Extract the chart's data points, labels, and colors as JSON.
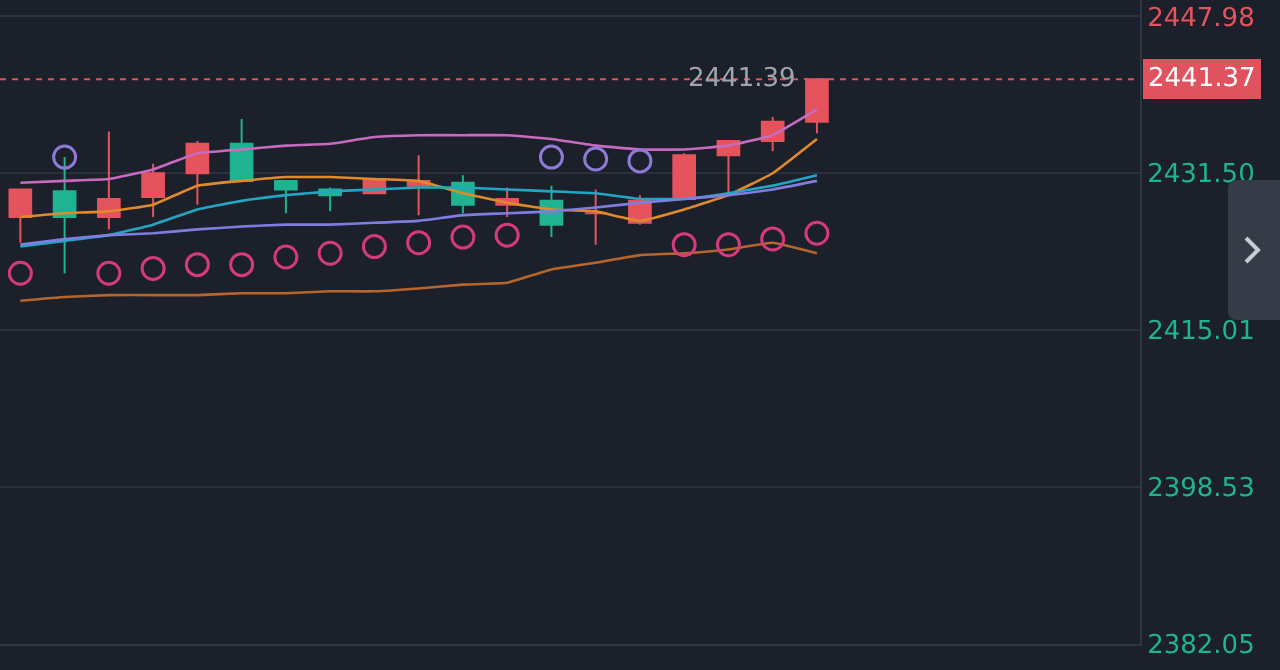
{
  "chart_data": {
    "type": "candlestick",
    "categories": [
      null,
      null,
      null,
      null,
      null,
      null,
      null,
      null,
      null,
      null,
      null,
      null,
      null,
      null,
      null,
      null,
      null,
      null,
      null
    ],
    "ohlc": [
      [
        2426.9,
        2429.8,
        2424.2,
        2429.8
      ],
      [
        2429.6,
        2433.2,
        2421.0,
        2426.9
      ],
      [
        2426.9,
        2435.9,
        2425.6,
        2428.8
      ],
      [
        2429.0,
        2432.5,
        2426.9,
        2431.5
      ],
      [
        2431.5,
        2434.9,
        2428.2,
        2434.6
      ],
      [
        2434.6,
        2437.2,
        2430.7,
        2430.7
      ],
      [
        2430.7,
        2430.7,
        2427.3,
        2429.8
      ],
      [
        2429.8,
        2430.0,
        2427.5,
        2429.2
      ],
      [
        2429.4,
        2430.9,
        2429.4,
        2430.9
      ],
      [
        2430.2,
        2433.4,
        2427.1,
        2430.7
      ],
      [
        2430.5,
        2431.3,
        2427.3,
        2428.2
      ],
      [
        2428.2,
        2430.0,
        2426.9,
        2428.8
      ],
      [
        2428.6,
        2430.2,
        2424.8,
        2426.1
      ],
      [
        2427.3,
        2429.8,
        2424.0,
        2427.3
      ],
      [
        2426.3,
        2429.2,
        2426.1,
        2428.6
      ],
      [
        2428.8,
        2433.6,
        2428.8,
        2433.4
      ],
      [
        2433.4,
        2434.9,
        2429.4,
        2434.9
      ],
      [
        2434.9,
        2437.4,
        2433.8,
        2436.9
      ],
      [
        2436.9,
        2441.39,
        2435.7,
        2441.37
      ]
    ],
    "series": [
      {
        "type": "line",
        "color": "#c86bc0",
        "values": [
          2430.5,
          2430.7,
          2430.9,
          2431.9,
          2433.6,
          2434.0,
          2434.4,
          2434.6,
          2435.3,
          2435.5,
          2435.5,
          2435.5,
          2435.1,
          2434.4,
          2434.0,
          2434.0,
          2434.4,
          2435.5,
          2438.2
        ]
      },
      {
        "type": "line",
        "color": "#e08a2c",
        "values": [
          2426.9,
          2427.3,
          2427.5,
          2428.2,
          2430.2,
          2430.7,
          2431.1,
          2431.1,
          2430.9,
          2430.7,
          2429.4,
          2428.4,
          2427.7,
          2427.5,
          2426.5,
          2427.7,
          2429.2,
          2431.5,
          2435.1
        ]
      },
      {
        "type": "line",
        "color": "#22a6c4",
        "values": [
          2423.8,
          2424.4,
          2425.0,
          2426.1,
          2427.7,
          2428.6,
          2429.2,
          2429.6,
          2429.8,
          2430.0,
          2430.0,
          2429.8,
          2429.6,
          2429.4,
          2428.8,
          2428.8,
          2429.4,
          2430.2,
          2431.3
        ]
      },
      {
        "type": "line",
        "color": "#7f7ee0",
        "values": [
          2424.0,
          2424.6,
          2425.0,
          2425.2,
          2425.6,
          2425.9,
          2426.1,
          2426.1,
          2426.3,
          2426.5,
          2427.1,
          2427.3,
          2427.5,
          2427.9,
          2428.4,
          2428.8,
          2429.2,
          2429.8,
          2430.7
        ]
      },
      {
        "type": "line",
        "color": "#b8652c",
        "values": [
          2418.1,
          2418.5,
          2418.7,
          2418.7,
          2418.7,
          2418.9,
          2418.9,
          2419.1,
          2419.1,
          2419.4,
          2419.8,
          2420.0,
          2421.4,
          2422.1,
          2422.9,
          2423.1,
          2423.5,
          2424.2,
          2423.1
        ]
      },
      {
        "type": "scatter",
        "marker": "circle",
        "values": [
          2421.0,
          2433.2,
          2421.0,
          2421.5,
          2421.9,
          2421.9,
          2422.7,
          2423.1,
          2423.8,
          2424.2,
          2424.8,
          2425.0,
          2433.2,
          2433.0,
          2432.8,
          2424.0,
          2424.0,
          2424.6,
          2425.2
        ],
        "colors": [
          "#d63a7c",
          "#8f7ad8",
          "#d63a7c",
          "#d63a7c",
          "#d63a7c",
          "#d63a7c",
          "#d63a7c",
          "#d63a7c",
          "#d63a7c",
          "#d63a7c",
          "#d63a7c",
          "#d63a7c",
          "#8f7ad8",
          "#8f7ad8",
          "#8f7ad8",
          "#d63a7c",
          "#d63a7c",
          "#d63a7c",
          "#d63a7c"
        ]
      }
    ],
    "ylim": [
      2382.05,
      2449.7
    ],
    "yticks": [
      2382.05,
      2398.53,
      2415.01,
      {
        "value": 2431.5,
        "label": "2431.50"
      },
      2447.98
    ],
    "ref_lines": [
      {
        "axis": "y",
        "value": 2441.37,
        "label": "2441.37",
        "color": "#e0535e",
        "line_style": "dotted"
      }
    ],
    "annotations": [
      {
        "text": "2441.39",
        "y": 2441.39
      }
    ],
    "grid": "y",
    "tick_labels": "y"
  }
}
